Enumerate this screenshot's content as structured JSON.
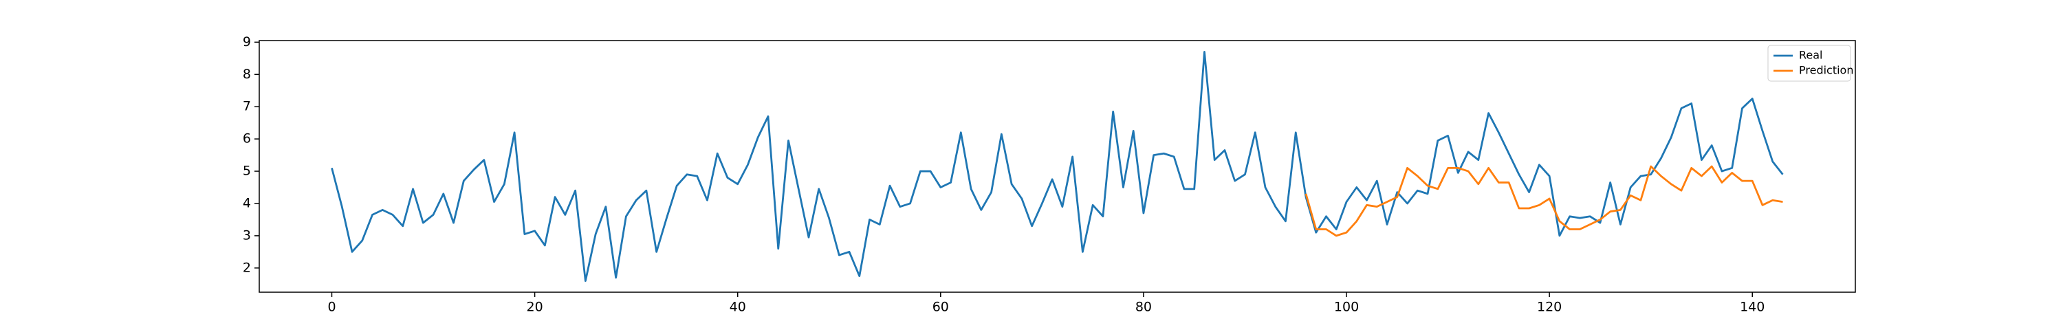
{
  "chart_data": {
    "type": "line",
    "x": [
      0,
      1,
      2,
      3,
      4,
      5,
      6,
      7,
      8,
      9,
      10,
      11,
      12,
      13,
      14,
      15,
      16,
      17,
      18,
      19,
      20,
      21,
      22,
      23,
      24,
      25,
      26,
      27,
      28,
      29,
      30,
      31,
      32,
      33,
      34,
      35,
      36,
      37,
      38,
      39,
      40,
      41,
      42,
      43,
      44,
      45,
      46,
      47,
      48,
      49,
      50,
      51,
      52,
      53,
      54,
      55,
      56,
      57,
      58,
      59,
      60,
      61,
      62,
      63,
      64,
      65,
      66,
      67,
      68,
      69,
      70,
      71,
      72,
      73,
      74,
      75,
      76,
      77,
      78,
      79,
      80,
      81,
      82,
      83,
      84,
      85,
      86,
      87,
      88,
      89,
      90,
      91,
      92,
      93,
      94,
      95,
      96,
      97,
      98,
      99,
      100,
      101,
      102,
      103,
      104,
      105,
      106,
      107,
      108,
      109,
      110,
      111,
      112,
      113,
      114,
      115,
      116,
      117,
      118,
      119,
      120,
      121,
      122,
      123,
      124,
      125,
      126,
      127,
      128,
      129,
      130,
      131,
      132,
      133,
      134,
      135,
      136,
      137,
      138,
      139,
      140,
      141,
      142,
      143
    ],
    "series": [
      {
        "name": "Real",
        "color": "#1f77b4",
        "values": [
          5.1,
          3.9,
          2.5,
          2.85,
          3.65,
          3.8,
          3.65,
          3.3,
          4.45,
          3.4,
          3.65,
          4.3,
          3.4,
          4.7,
          5.05,
          5.35,
          4.05,
          4.6,
          6.2,
          3.05,
          3.15,
          2.7,
          4.2,
          3.65,
          4.4,
          1.6,
          3.05,
          3.9,
          1.7,
          3.6,
          4.1,
          4.4,
          2.5,
          3.55,
          4.55,
          4.9,
          4.85,
          4.1,
          5.55,
          4.8,
          4.6,
          5.2,
          6.05,
          6.7,
          2.6,
          5.95,
          4.45,
          2.95,
          4.45,
          3.55,
          2.4,
          2.5,
          1.75,
          3.5,
          3.35,
          4.55,
          3.9,
          4.0,
          5.0,
          5.0,
          4.5,
          4.65,
          6.2,
          4.45,
          3.8,
          4.35,
          6.15,
          4.6,
          4.15,
          3.3,
          4.0,
          4.75,
          3.9,
          5.45,
          2.5,
          3.95,
          3.6,
          6.85,
          4.5,
          6.25,
          3.7,
          5.5,
          5.55,
          5.45,
          4.45,
          4.45,
          8.7,
          5.35,
          5.65,
          4.7,
          4.9,
          6.2,
          4.5,
          3.9,
          3.45,
          6.2,
          4.2,
          3.1,
          3.6,
          3.2,
          4.05,
          4.5,
          4.1,
          4.7,
          3.35,
          4.35,
          4.0,
          4.4,
          4.3,
          5.95,
          6.1,
          4.95,
          5.6,
          5.35,
          6.8,
          6.2,
          5.55,
          4.9,
          4.35,
          5.2,
          4.85,
          3.0,
          3.6,
          3.55,
          3.6,
          3.4,
          4.65,
          3.35,
          4.5,
          4.85,
          4.9,
          5.4,
          6.05,
          6.95,
          7.1,
          5.35,
          5.8,
          5.0,
          5.1,
          6.95,
          7.25,
          6.25,
          5.3,
          4.9
        ]
      },
      {
        "name": "Prediction",
        "color": "#ff7f0e",
        "values": [
          null,
          null,
          null,
          null,
          null,
          null,
          null,
          null,
          null,
          null,
          null,
          null,
          null,
          null,
          null,
          null,
          null,
          null,
          null,
          null,
          null,
          null,
          null,
          null,
          null,
          null,
          null,
          null,
          null,
          null,
          null,
          null,
          null,
          null,
          null,
          null,
          null,
          null,
          null,
          null,
          null,
          null,
          null,
          null,
          null,
          null,
          null,
          null,
          null,
          null,
          null,
          null,
          null,
          null,
          null,
          null,
          null,
          null,
          null,
          null,
          null,
          null,
          null,
          null,
          null,
          null,
          null,
          null,
          null,
          null,
          null,
          null,
          null,
          null,
          null,
          null,
          null,
          null,
          null,
          null,
          null,
          null,
          null,
          null,
          null,
          null,
          null,
          null,
          null,
          null,
          null,
          null,
          null,
          null,
          null,
          null,
          4.3,
          3.2,
          3.2,
          3.0,
          3.1,
          3.45,
          3.95,
          3.9,
          4.05,
          4.2,
          5.1,
          4.85,
          4.55,
          4.45,
          5.1,
          5.1,
          5.0,
          4.6,
          5.1,
          4.65,
          4.65,
          3.85,
          3.85,
          3.95,
          4.15,
          3.45,
          3.2,
          3.2,
          3.35,
          3.5,
          3.75,
          3.8,
          4.25,
          4.1,
          5.15,
          4.85,
          4.6,
          4.4,
          5.1,
          4.85,
          5.15,
          4.65,
          4.95,
          4.7,
          4.7,
          3.95,
          4.1,
          4.05
        ]
      }
    ],
    "xlim": [
      -7.15,
      150.15
    ],
    "ylim": [
      1.25,
      9.05
    ],
    "xticks": [
      0,
      20,
      40,
      60,
      80,
      100,
      120,
      140
    ],
    "yticks": [
      2,
      3,
      4,
      5,
      6,
      7,
      8,
      9
    ],
    "legend": "upper right"
  }
}
